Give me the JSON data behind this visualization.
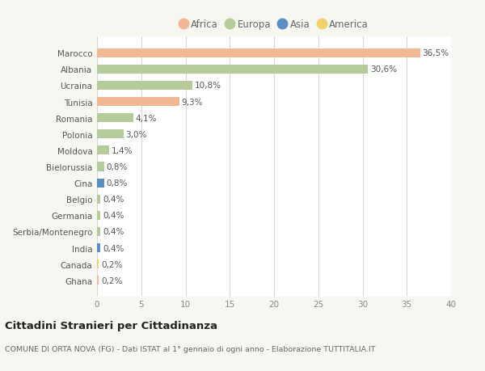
{
  "categories": [
    "Ghana",
    "Canada",
    "India",
    "Serbia/Montenegro",
    "Germania",
    "Belgio",
    "Cina",
    "Bielorussia",
    "Moldova",
    "Polonia",
    "Romania",
    "Tunisia",
    "Ucraina",
    "Albania",
    "Marocco"
  ],
  "values": [
    0.2,
    0.2,
    0.4,
    0.4,
    0.4,
    0.4,
    0.8,
    0.8,
    1.4,
    3.0,
    4.1,
    9.3,
    10.8,
    30.6,
    36.5
  ],
  "labels": [
    "0,2%",
    "0,2%",
    "0,4%",
    "0,4%",
    "0,4%",
    "0,4%",
    "0,8%",
    "0,8%",
    "1,4%",
    "3,0%",
    "4,1%",
    "9,3%",
    "10,8%",
    "30,6%",
    "36,5%"
  ],
  "continents": [
    "Africa",
    "America",
    "Asia",
    "Europa",
    "Europa",
    "Europa",
    "Asia",
    "Europa",
    "Europa",
    "Europa",
    "Europa",
    "Africa",
    "Europa",
    "Europa",
    "Africa"
  ],
  "colors": {
    "Africa": "#F2B896",
    "Europa": "#B5CB9A",
    "Asia": "#5B8EC5",
    "America": "#F2D06E"
  },
  "legend_order": [
    "Africa",
    "Europa",
    "Asia",
    "America"
  ],
  "xlim": [
    0,
    40
  ],
  "xticks": [
    0,
    5,
    10,
    15,
    20,
    25,
    30,
    35,
    40
  ],
  "title_main": "Cittadini Stranieri per Cittadinanza",
  "title_sub": "COMUNE DI ORTA NOVA (FG) - Dati ISTAT al 1° gennaio di ogni anno - Elaborazione TUTTITALIA.IT",
  "bg_color": "#f7f7f2",
  "bar_bg_color": "#ffffff",
  "grid_color": "#d8d8d8",
  "label_fontsize": 7.5,
  "tick_fontsize": 7.5,
  "ylabel_fontsize": 7.5
}
